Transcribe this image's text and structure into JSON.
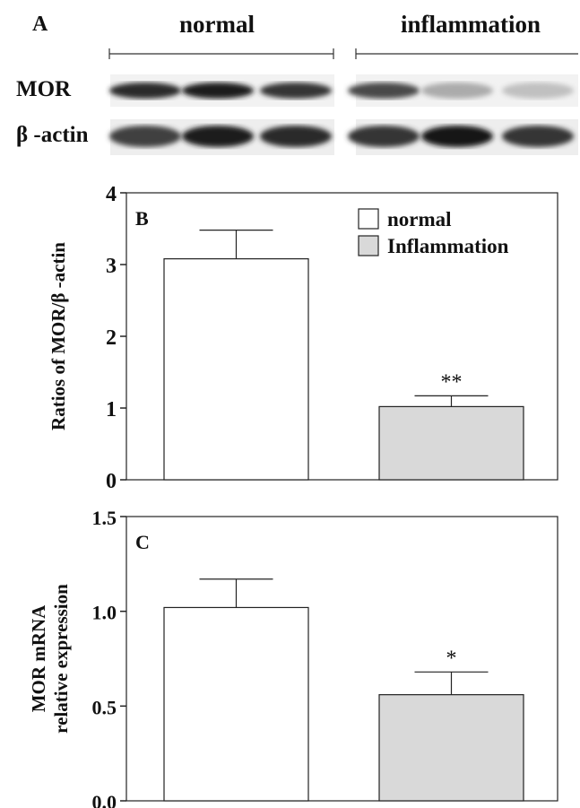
{
  "panel_a": {
    "letter": "A",
    "groups": [
      "normal",
      "inflammation"
    ],
    "rows": [
      {
        "label": "MOR",
        "normal_intensity": [
          0.9,
          0.95,
          0.85
        ],
        "inflammation_intensity": [
          0.75,
          0.3,
          0.2
        ]
      },
      {
        "label": "β -actin",
        "normal_intensity": [
          0.8,
          0.95,
          0.9
        ],
        "inflammation_intensity": [
          0.85,
          1.0,
          0.85
        ]
      }
    ]
  },
  "chart_data": [
    {
      "type": "bar",
      "panel": "B",
      "categories": [
        "normal",
        "Inflammation"
      ],
      "values": [
        3.08,
        1.02
      ],
      "errors": [
        0.4,
        0.15
      ],
      "significance": [
        "",
        "**"
      ],
      "colors": [
        "#ffffff",
        "#d9d9d9"
      ],
      "ylabel": "Ratios of MOR/β -actin",
      "ylim": [
        0,
        4
      ],
      "yticks": [
        "0",
        "1",
        "2",
        "3",
        "4"
      ],
      "yticks_values": [
        0,
        1,
        2,
        3,
        4
      ],
      "legend": [
        "normal",
        "Inflammation"
      ],
      "legend_position": "top-right"
    },
    {
      "type": "bar",
      "panel": "C",
      "categories": [
        "normal",
        "Inflammation"
      ],
      "values": [
        1.02,
        0.56
      ],
      "errors": [
        0.15,
        0.12
      ],
      "significance": [
        "",
        "*"
      ],
      "colors": [
        "#ffffff",
        "#d9d9d9"
      ],
      "ylabel_lines": [
        "MOR  mRNA",
        "relative expression"
      ],
      "ylim": [
        0,
        1.5
      ],
      "yticks": [
        "0.0",
        "0.5",
        "1.0",
        "1.5"
      ],
      "yticks_values": [
        0,
        0.5,
        1.0,
        1.5
      ]
    }
  ]
}
